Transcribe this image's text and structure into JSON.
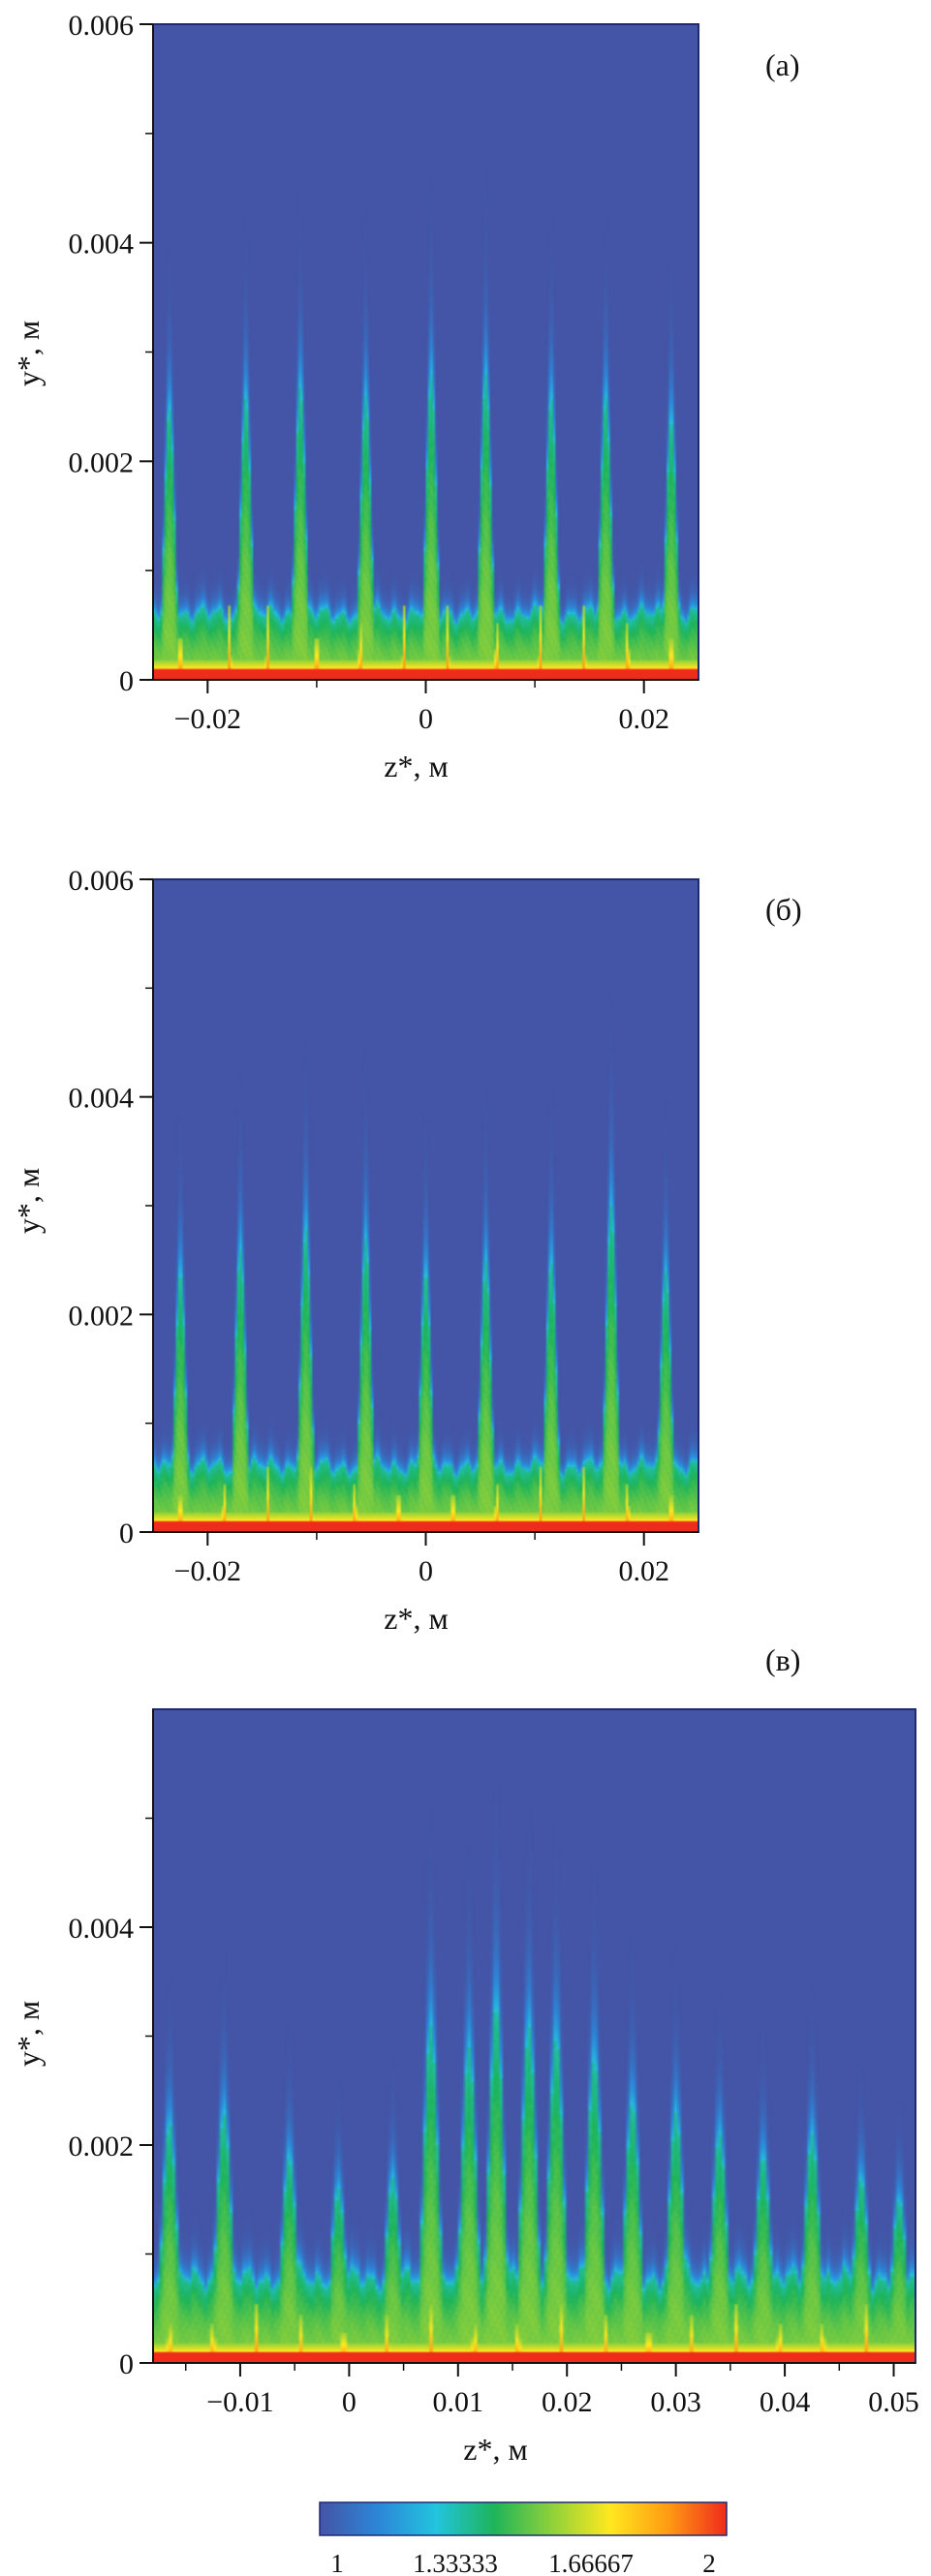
{
  "chart_data": [
    {
      "type": "heatmap",
      "panel_label": "(а)",
      "xlabel": "z*, м",
      "ylabel": "y*, м",
      "xlim": [
        -0.025,
        0.025
      ],
      "ylim": [
        0,
        0.006
      ],
      "x_ticks": [
        -0.02,
        0,
        0.02
      ],
      "x_tick_labels": [
        "−0.02",
        "0",
        "0.02"
      ],
      "y_ticks": [
        0,
        0.002,
        0.004,
        0.006
      ],
      "y_tick_labels": [
        "0",
        "0.002",
        "0.004",
        "0.006"
      ],
      "field": {
        "z": [
          -0.0235,
          -0.0165,
          -0.0115,
          -0.0055,
          0.0005,
          0.0055,
          0.0115,
          0.0165,
          0.0225
        ],
        "peak_height": [
          0.0025,
          0.0026,
          0.0027,
          0.0026,
          0.0028,
          0.0028,
          0.0026,
          0.0026,
          0.0024
        ],
        "base_height": 0.0007,
        "spikes_z": [
          -0.0225,
          -0.018,
          -0.0145,
          -0.01,
          -0.006,
          -0.002,
          0.002,
          0.0065,
          0.0105,
          0.0145,
          0.0185,
          0.0225
        ],
        "spike_height": 0.0008
      }
    },
    {
      "type": "heatmap",
      "panel_label": "(б)",
      "xlabel": "z*, м",
      "ylabel": "y*, м",
      "xlim": [
        -0.025,
        0.025
      ],
      "ylim": [
        0,
        0.006
      ],
      "x_ticks": [
        -0.02,
        0,
        0.02
      ],
      "x_tick_labels": [
        "−0.02",
        "0",
        "0.02"
      ],
      "y_ticks": [
        0,
        0.002,
        0.004,
        0.006
      ],
      "y_tick_labels": [
        "0",
        "0.002",
        "0.004",
        "0.006"
      ],
      "field": {
        "z": [
          -0.0225,
          -0.017,
          -0.011,
          -0.0055,
          0.0,
          0.0055,
          0.0115,
          0.017,
          0.022
        ],
        "peak_height": [
          0.0024,
          0.0026,
          0.0028,
          0.0027,
          0.0024,
          0.0025,
          0.0025,
          0.003,
          0.0024
        ],
        "base_height": 0.0007,
        "spikes_z": [
          -0.0225,
          -0.0185,
          -0.0145,
          -0.0105,
          -0.0065,
          -0.0025,
          0.0025,
          0.0065,
          0.0105,
          0.0145,
          0.0185,
          0.0225
        ],
        "spike_height": 0.0007
      }
    },
    {
      "type": "heatmap",
      "panel_label": "(в)",
      "xlabel": "z*, м",
      "ylabel": "y*, м",
      "xlim": [
        -0.018,
        0.052
      ],
      "ylim": [
        0,
        0.006
      ],
      "x_ticks": [
        -0.01,
        0,
        0.01,
        0.02,
        0.03,
        0.04,
        0.05
      ],
      "x_tick_labels": [
        "−0.01",
        "0",
        "0.01",
        "0.02",
        "0.03",
        "0.04",
        "0.05"
      ],
      "y_ticks": [
        0,
        0.002,
        0.004
      ],
      "y_tick_labels": [
        "0",
        "0.002",
        "0.004"
      ],
      "field": {
        "z": [
          -0.0165,
          -0.0115,
          -0.0055,
          -0.001,
          0.004,
          0.0075,
          0.011,
          0.0135,
          0.0165,
          0.019,
          0.0225,
          0.026,
          0.03,
          0.034,
          0.038,
          0.0425,
          0.047,
          0.0505
        ],
        "peak_height": [
          0.0022,
          0.0023,
          0.0019,
          0.0016,
          0.0017,
          0.0031,
          0.0029,
          0.0033,
          0.0031,
          0.003,
          0.0028,
          0.0024,
          0.0023,
          0.0021,
          0.0019,
          0.0021,
          0.0017,
          0.0015
        ],
        "base_height": 0.0009,
        "spikes_z": [
          -0.0165,
          -0.0125,
          -0.0085,
          -0.0045,
          -0.0005,
          0.0035,
          0.0075,
          0.0115,
          0.0155,
          0.0195,
          0.0235,
          0.0275,
          0.0315,
          0.0355,
          0.0395,
          0.0435,
          0.0475
        ],
        "spike_height": 0.0006
      }
    }
  ],
  "colorbar": {
    "min": 1,
    "max": 2,
    "ticks": [
      1,
      1.33333,
      1.66667,
      2
    ],
    "tick_labels": [
      "1",
      "1.33333",
      "1.66667",
      "2"
    ],
    "colors": [
      "#4454a6",
      "#2c86d8",
      "#22c4df",
      "#1eb45a",
      "#8fd13a",
      "#ffe81f",
      "#ff9a12",
      "#ef2b1c"
    ]
  }
}
